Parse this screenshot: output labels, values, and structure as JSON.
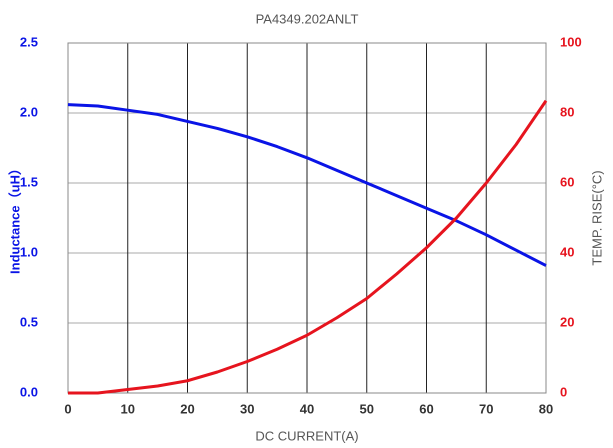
{
  "chart_data": {
    "type": "line",
    "title": "PA4349.202ANLT",
    "xlabel": "DC CURRENT(A)",
    "ylabel": "Inductance（uH）",
    "y2label": "TEMP. RISE(°C)",
    "x": [
      0,
      5,
      10,
      15,
      20,
      25,
      30,
      35,
      40,
      45,
      50,
      55,
      60,
      65,
      70,
      75,
      80
    ],
    "series": [
      {
        "name": "Inductance",
        "color": "#0a14e6",
        "values": [
          2.06,
          2.05,
          2.02,
          1.99,
          1.94,
          1.89,
          1.83,
          1.76,
          1.68,
          1.59,
          1.5,
          1.41,
          1.32,
          1.23,
          1.13,
          1.02,
          0.91
        ]
      },
      {
        "name": "Temp. Rise",
        "color": "#e6141e",
        "axis": "y2",
        "values": [
          0,
          0,
          1,
          2,
          3.5,
          6,
          9,
          12.5,
          16.5,
          21.5,
          27,
          34,
          41.5,
          50,
          60,
          71,
          83.5
        ]
      }
    ],
    "xlim": [
      0,
      80
    ],
    "xticks": [
      0,
      10,
      20,
      30,
      40,
      50,
      60,
      70,
      80
    ],
    "ylim": [
      0,
      2.5
    ],
    "yticks": [
      {
        "value": 0,
        "label": "0.0"
      },
      0.5,
      {
        "value": 1,
        "label": "1.0"
      },
      1.5,
      {
        "value": 2,
        "label": "2.0"
      },
      2.5
    ],
    "y2lim": [
      0,
      100
    ],
    "y2ticks": [
      0,
      20,
      40,
      60,
      80,
      100
    ],
    "grid": true,
    "ytick_color": "#0a14e6",
    "y2tick_color": "#e6141e"
  }
}
